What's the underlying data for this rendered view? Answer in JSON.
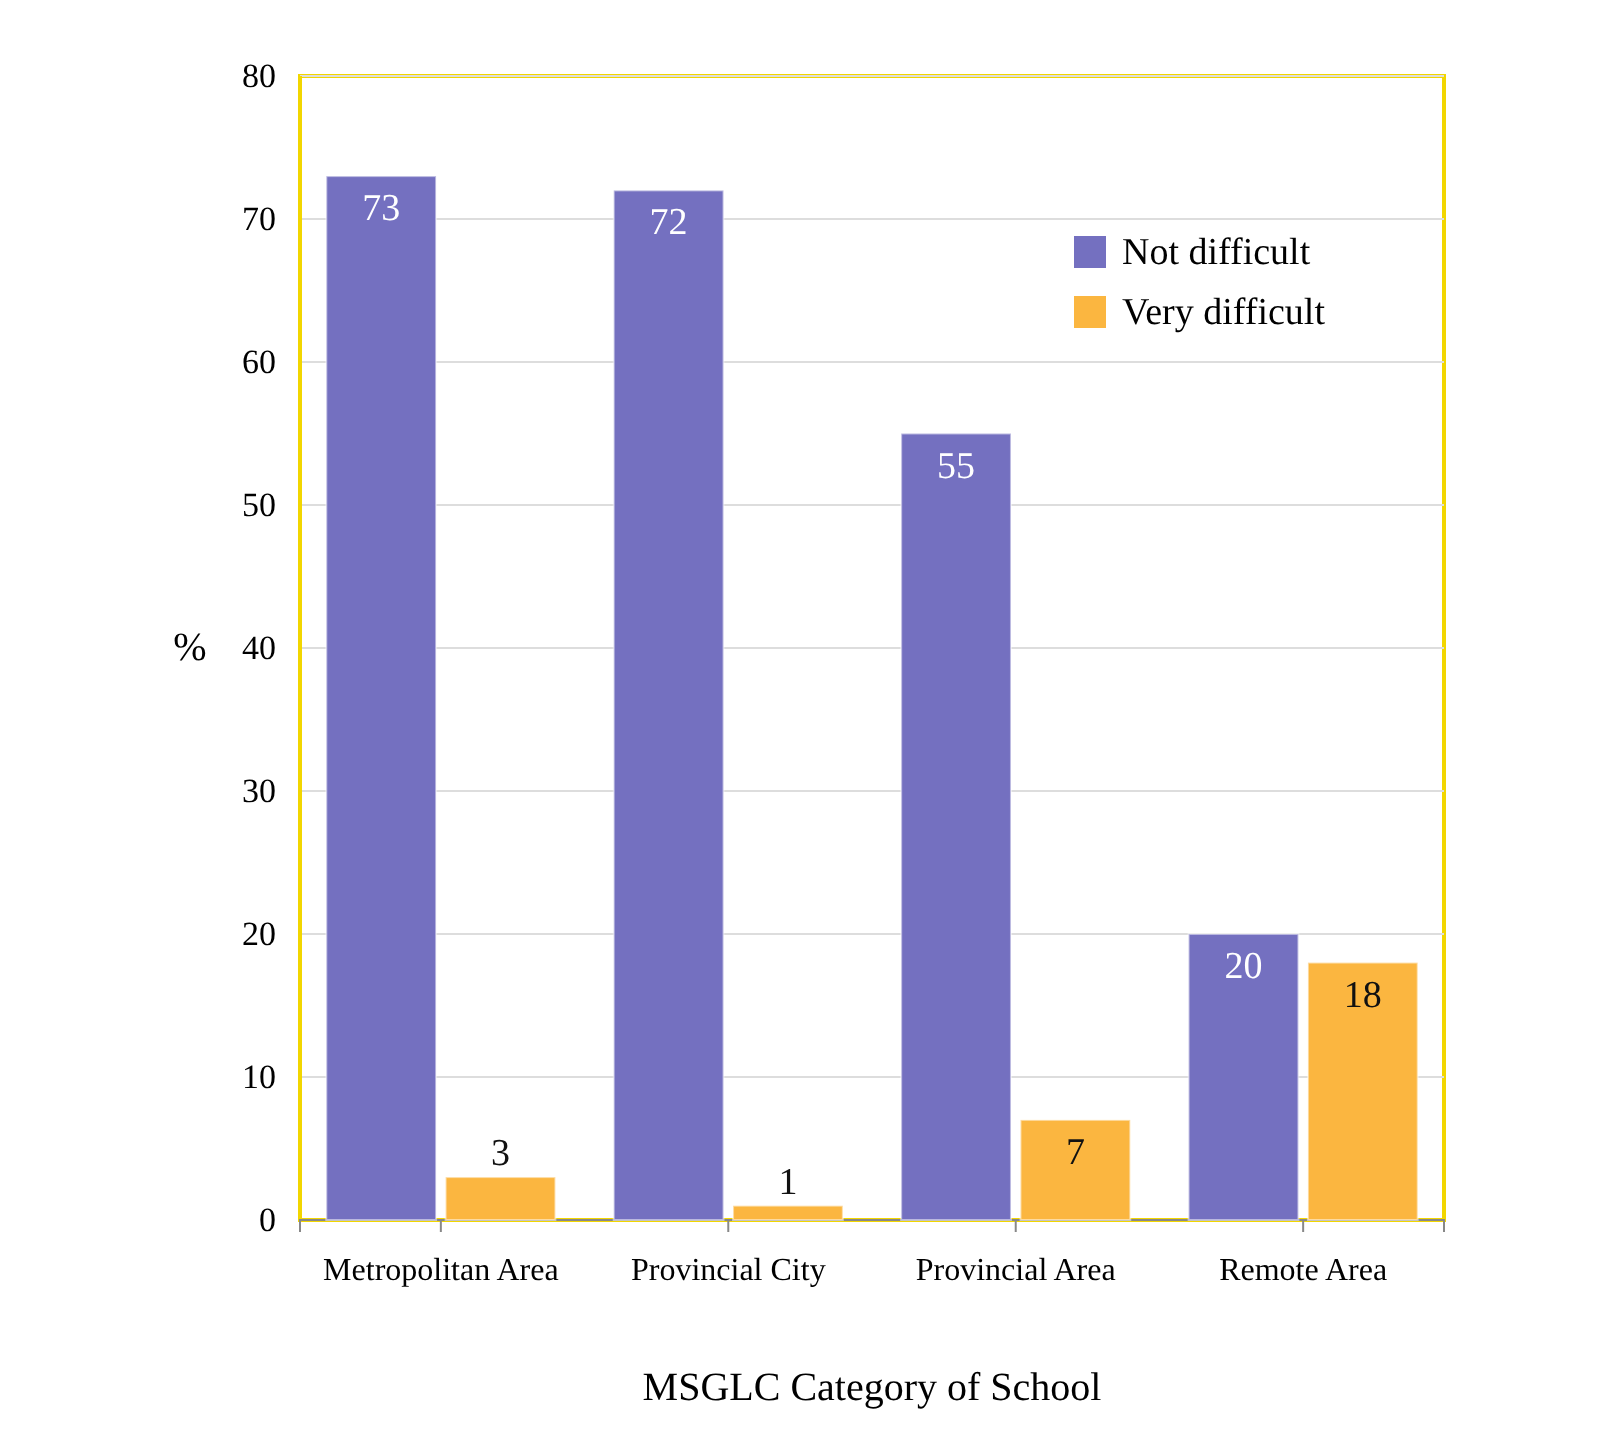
{
  "chart_data": {
    "type": "bar",
    "xlabel": "MSGLC Category of School",
    "ylabel": "%",
    "categories": [
      "Metropolitan Area",
      "Provincial City",
      "Provincial Area",
      "Remote Area"
    ],
    "series": [
      {
        "name": "Not difficult",
        "color": "#7470c0",
        "values": [
          73,
          72,
          55,
          20
        ]
      },
      {
        "name": "Very difficult",
        "color": "#fbb640",
        "values": [
          3,
          1,
          7,
          18
        ]
      }
    ],
    "ylim": [
      0,
      80
    ],
    "yticks": [
      0,
      10,
      20,
      30,
      40,
      50,
      60,
      70,
      80
    ],
    "grid": "y",
    "legend": "top right",
    "data_labels": true
  }
}
